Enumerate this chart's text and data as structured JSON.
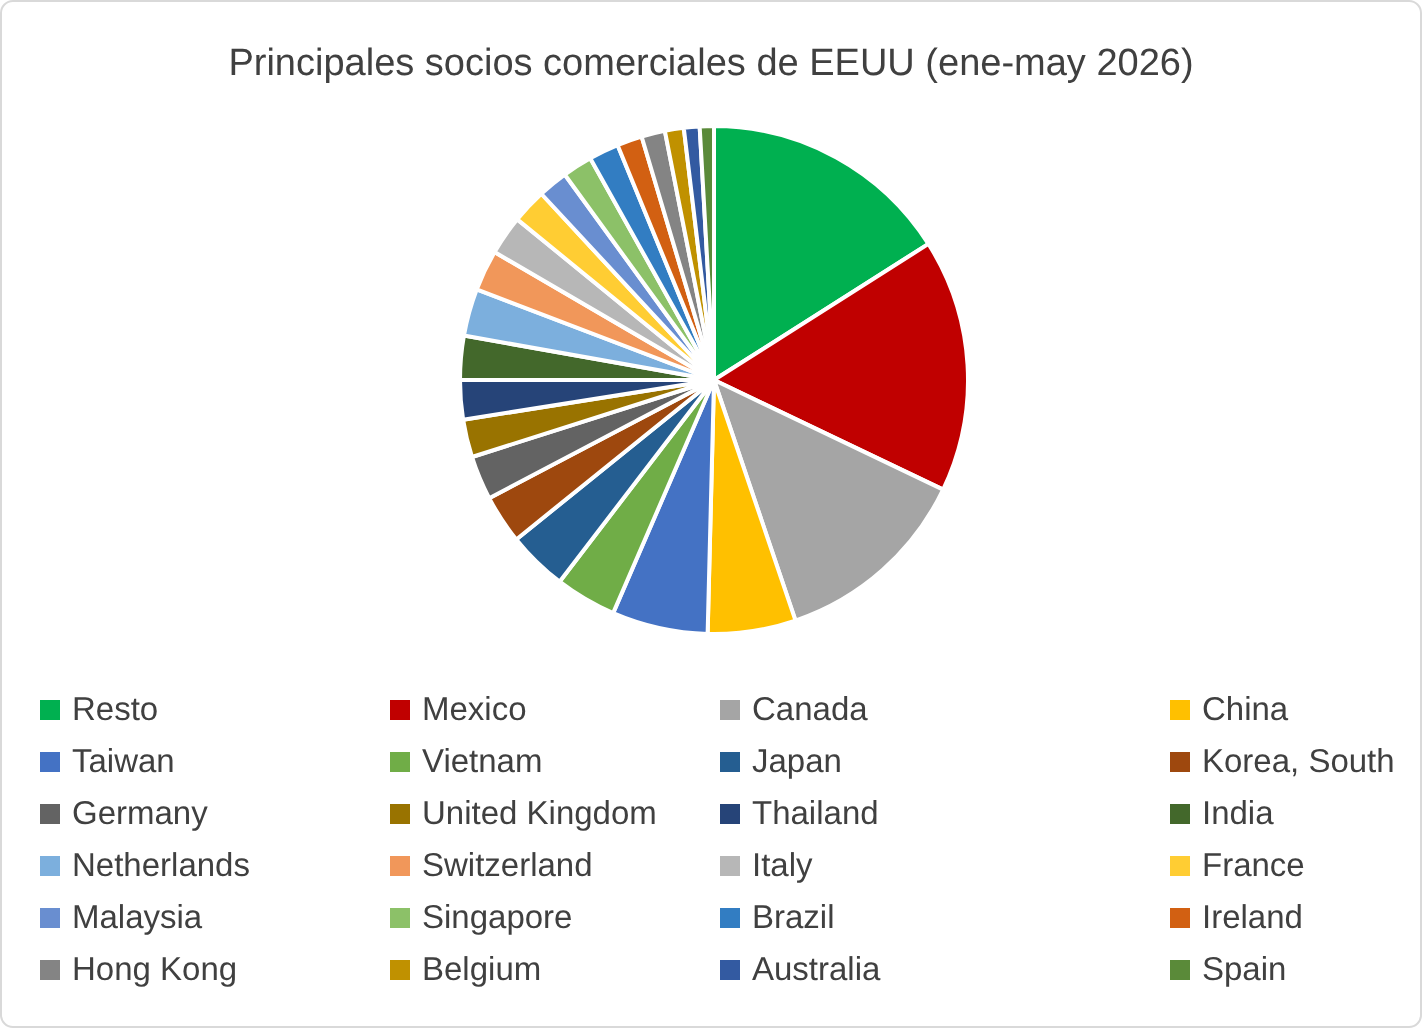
{
  "chart_data": {
    "type": "pie",
    "title": "Principales socios comerciales de EEUU (ene-may 2026)",
    "categories": [
      "Resto",
      "Mexico",
      "Canada",
      "China",
      "Taiwan",
      "Vietnam",
      "Japan",
      "Korea, South",
      "Germany",
      "United Kingdom",
      "Thailand",
      "India",
      "Netherlands",
      "Switzerland",
      "Italy",
      "France",
      "Malaysia",
      "Singapore",
      "Brazil",
      "Ireland",
      "Hong Kong",
      "Belgium",
      "Australia",
      "Spain"
    ],
    "values": [
      16.0,
      16.1,
      12.7,
      5.6,
      6.1,
      3.9,
      3.8,
      3.1,
      2.8,
      2.4,
      2.5,
      2.8,
      3.0,
      2.6,
      2.5,
      2.2,
      1.9,
      1.9,
      1.9,
      1.6,
      1.5,
      1.2,
      1.0,
      0.9
    ],
    "colors": [
      "#00b050",
      "#c00000",
      "#a5a5a5",
      "#ffc000",
      "#4472c4",
      "#70ad47",
      "#255e91",
      "#9e480e",
      "#636363",
      "#997300",
      "#264478",
      "#43682b",
      "#7cafdd",
      "#f1975a",
      "#b7b7b7",
      "#ffcd33",
      "#698ed0",
      "#8cc168",
      "#327dc2",
      "#d26012",
      "#848484",
      "#c09100",
      "#335aa1",
      "#5a8a39"
    ],
    "legend": "bottom"
  }
}
